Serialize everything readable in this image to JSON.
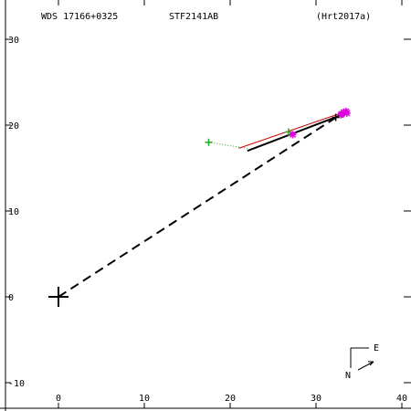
{
  "header": {
    "wds_id": "WDS 17166+0325",
    "discoverer": "STF2141AB",
    "reference": "(Hrt2017a)"
  },
  "compass": {
    "north_label": "N",
    "east_label": "E"
  },
  "colors": {
    "axes": "#000000",
    "orbit": "#000000",
    "predicted_arc": "#cc0000",
    "early_obs": "#22aa22",
    "recent_obs": "#dd00dd",
    "origin_line": "#000000"
  },
  "chart_data": {
    "type": "scatter",
    "title": "",
    "xlabel": "",
    "ylabel": "",
    "xlim": [
      -6,
      40
    ],
    "ylim": [
      -12,
      33
    ],
    "x_ticks": [
      0,
      10,
      20,
      30,
      40
    ],
    "y_ticks": [
      -10,
      0,
      10,
      20,
      30
    ],
    "x_tick_labels": [
      "0",
      "10",
      "20",
      "30",
      "40"
    ],
    "y_tick_labels": [
      "-10",
      "0",
      "10",
      "20",
      "30"
    ],
    "grid": false,
    "primary_star": {
      "x": 0,
      "y": 0
    },
    "origin_line": [
      [
        0,
        0
      ],
      [
        32.5,
        21
      ]
    ],
    "orbit_segment": [
      [
        22,
        17
      ],
      [
        33.8,
        21.5
      ]
    ],
    "predicted_arc": [
      [
        21,
        17.3
      ],
      [
        33.5,
        21.6
      ]
    ],
    "early_obs_trail": [
      [
        17.5,
        18
      ],
      [
        20,
        17.6
      ],
      [
        22,
        17.3
      ]
    ],
    "series": [
      {
        "marker": "plus",
        "points": [
          [
            17.5,
            18
          ],
          [
            26.8,
            19.2
          ]
        ]
      },
      {
        "marker": "star",
        "points": [
          [
            27.3,
            18.9
          ],
          [
            32.9,
            21.2
          ],
          [
            33.2,
            21.5
          ],
          [
            33.5,
            21.6
          ],
          [
            33.0,
            21.3
          ],
          [
            33.6,
            21.4
          ]
        ]
      }
    ],
    "black_obs": [
      [
        32.3,
        20.9
      ]
    ]
  }
}
